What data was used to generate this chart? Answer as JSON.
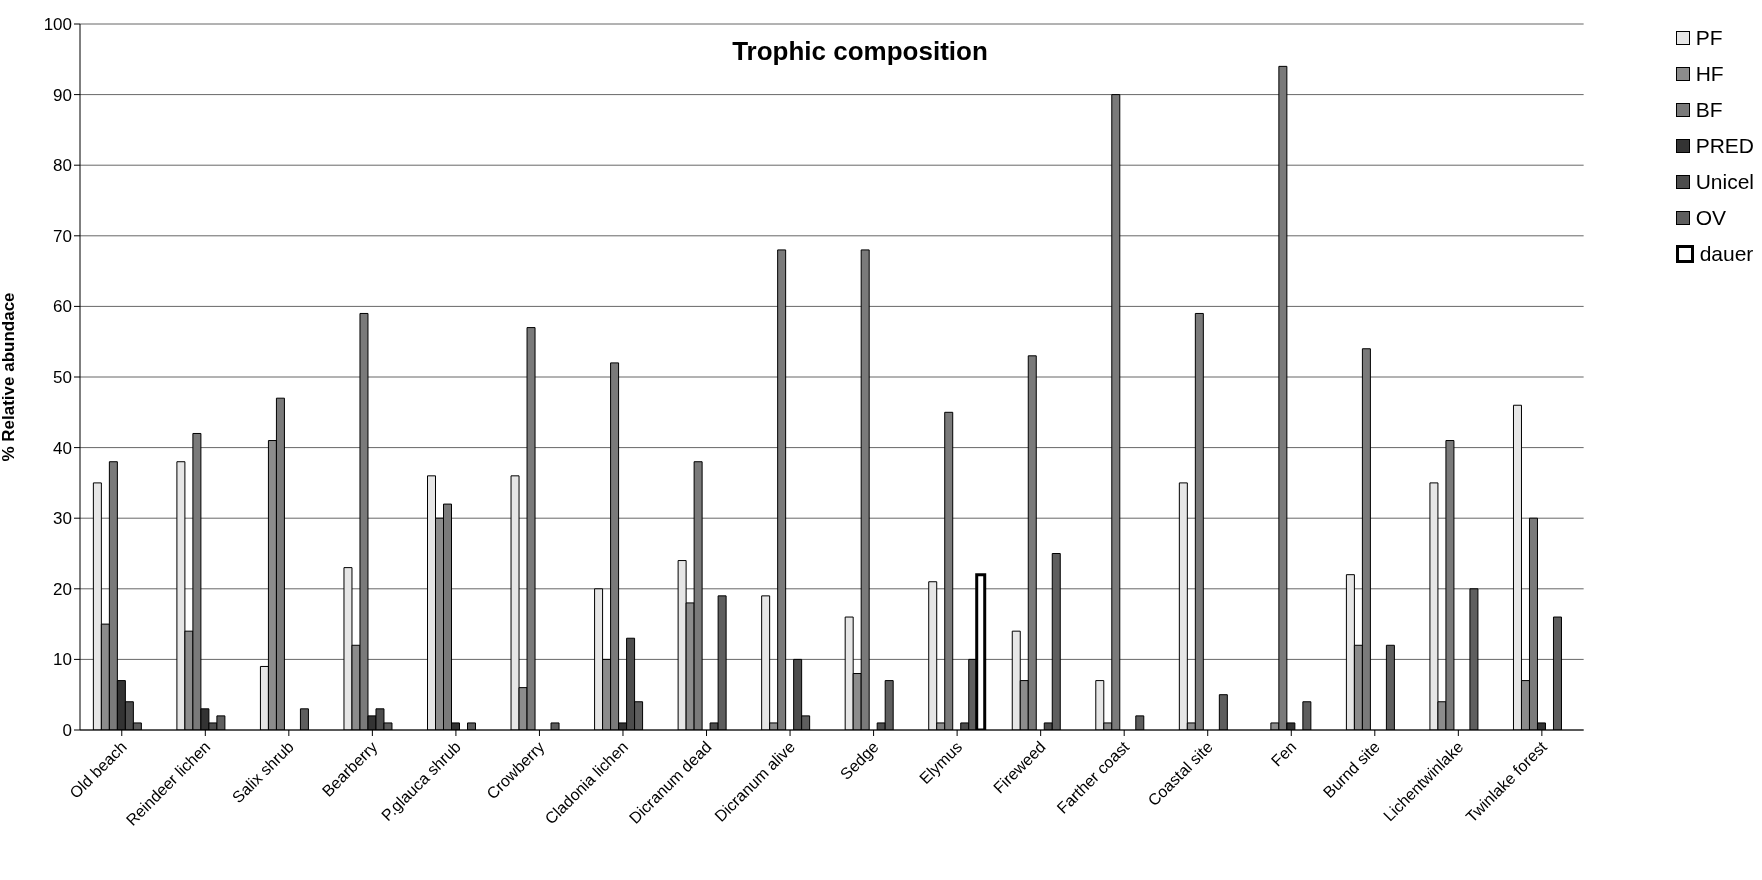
{
  "chart_data": {
    "type": "bar",
    "title": "Trophic composition",
    "ylabel": "% Relative abundace",
    "categories": [
      "Old beach",
      "Reindeer lichen",
      "Salix shrub",
      "Bearberry",
      "P.glauca shrub",
      "Crowberry",
      "Cladonia lichen",
      "Dicranum dead",
      "Dicranum alive",
      "Sedge",
      "Elymus",
      "Fireweed",
      "Farther coast",
      "Coastal site",
      "Fen",
      "Burnd site",
      "Lichentwinlake",
      "Twinlake forest"
    ],
    "series": [
      {
        "name": "PF",
        "color": "#e6e6e6",
        "values": [
          35,
          38,
          9,
          23,
          36,
          36,
          20,
          24,
          19,
          16,
          21,
          14,
          7,
          35,
          0,
          22,
          35,
          46
        ]
      },
      {
        "name": "HF",
        "color": "#8c8c8c",
        "values": [
          15,
          14,
          41,
          12,
          30,
          6,
          10,
          18,
          1,
          8,
          1,
          7,
          1,
          1,
          1,
          12,
          4,
          7
        ]
      },
      {
        "name": "BF",
        "color": "#7a7a7a",
        "values": [
          38,
          42,
          47,
          59,
          32,
          57,
          52,
          38,
          68,
          68,
          45,
          53,
          90,
          59,
          94,
          54,
          41,
          30
        ]
      },
      {
        "name": "PRED",
        "color": "#333333",
        "values": [
          7,
          3,
          0,
          2,
          1,
          0,
          1,
          0,
          0,
          0,
          0,
          0,
          0,
          0,
          1,
          0,
          0,
          1
        ]
      },
      {
        "name": "Unicel",
        "color": "#4d4d4d",
        "values": [
          4,
          1,
          0,
          3,
          0,
          0,
          13,
          1,
          10,
          1,
          1,
          1,
          0,
          0,
          0,
          0,
          0,
          0
        ]
      },
      {
        "name": "OV",
        "color": "#5e5e5e",
        "values": [
          1,
          2,
          3,
          1,
          1,
          1,
          4,
          19,
          2,
          7,
          10,
          25,
          2,
          5,
          4,
          12,
          20,
          16
        ]
      },
      {
        "name": "dauer",
        "color": "#ffffff",
        "values": [
          0,
          0,
          0,
          0,
          0,
          0,
          0,
          0,
          0,
          0,
          22,
          0,
          0,
          0,
          0,
          0,
          0,
          0
        ]
      }
    ],
    "ylim": [
      0,
      100
    ],
    "yticks": [
      0,
      10,
      20,
      30,
      40,
      50,
      60,
      70,
      80,
      90,
      100
    ],
    "grid": "y",
    "legend": "top right"
  }
}
